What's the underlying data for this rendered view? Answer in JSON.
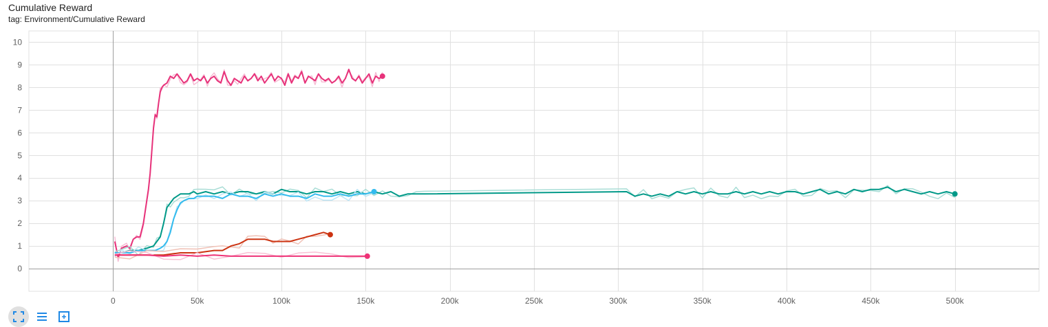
{
  "header": {
    "title": "Cumulative Reward",
    "subtitle": "tag: Environment/Cumulative Reward"
  },
  "toolbar": {
    "icons": [
      "fit-domain-icon",
      "toggle-log-scale-icon",
      "expand-chart-icon"
    ]
  },
  "chart_data": {
    "type": "line",
    "title": "Cumulative Reward",
    "xlabel": "",
    "ylabel": "",
    "xlim": [
      -50000,
      550000
    ],
    "ylim": [
      -1,
      10.5
    ],
    "x_ticks": [
      0,
      50000,
      100000,
      150000,
      200000,
      250000,
      300000,
      350000,
      400000,
      450000,
      500000
    ],
    "x_tick_labels": [
      "0",
      "50k",
      "100k",
      "150k",
      "200k",
      "250k",
      "300k",
      "350k",
      "400k",
      "450k",
      "500k"
    ],
    "y_ticks": [
      0,
      1,
      2,
      3,
      4,
      5,
      6,
      7,
      8,
      9,
      10
    ],
    "y_tick_labels": [
      "0",
      "1",
      "2",
      "3",
      "4",
      "5",
      "6",
      "7",
      "8",
      "9",
      "10"
    ],
    "grid": true,
    "legend": "none",
    "series": [
      {
        "color": "#e7327a",
        "raw_color": "#f6bcd4",
        "x": [
          1000,
          3000,
          5000,
          8000,
          10000,
          12000,
          14000,
          16000,
          18000,
          20000,
          21000,
          22000,
          23000,
          24000,
          25000,
          26000,
          27000,
          28000,
          29000,
          30000,
          32000,
          34000,
          36000,
          38000,
          40000,
          42000,
          44000,
          46000,
          48000,
          50000,
          52000,
          54000,
          56000,
          58000,
          60000,
          62000,
          64000,
          66000,
          68000,
          70000,
          72000,
          74000,
          76000,
          78000,
          80000,
          82000,
          84000,
          86000,
          88000,
          90000,
          92000,
          94000,
          96000,
          98000,
          100000,
          102000,
          104000,
          106000,
          108000,
          110000,
          112000,
          114000,
          116000,
          118000,
          120000,
          122000,
          124000,
          126000,
          128000,
          130000,
          132000,
          134000,
          136000,
          138000,
          140000,
          142000,
          144000,
          146000,
          148000,
          150000,
          152000,
          154000,
          156000,
          158000,
          160000
        ],
        "y": [
          1.2,
          0.5,
          0.9,
          1.0,
          0.9,
          1.3,
          1.4,
          1.4,
          2.0,
          3.0,
          3.5,
          4.2,
          5.2,
          6.2,
          6.8,
          6.7,
          7.3,
          7.8,
          8.0,
          8.1,
          8.2,
          8.5,
          8.4,
          8.6,
          8.4,
          8.2,
          8.3,
          8.6,
          8.3,
          8.4,
          8.3,
          8.5,
          8.2,
          8.4,
          8.5,
          8.3,
          8.2,
          8.7,
          8.3,
          8.1,
          8.4,
          8.3,
          8.2,
          8.5,
          8.3,
          8.4,
          8.6,
          8.3,
          8.5,
          8.2,
          8.4,
          8.6,
          8.3,
          8.5,
          8.4,
          8.1,
          8.6,
          8.2,
          8.5,
          8.4,
          8.7,
          8.2,
          8.5,
          8.4,
          8.3,
          8.6,
          8.4,
          8.3,
          8.4,
          8.2,
          8.3,
          8.5,
          8.2,
          8.4,
          8.8,
          8.4,
          8.3,
          8.5,
          8.2,
          8.4,
          8.6,
          8.2,
          8.5,
          8.4,
          8.5
        ]
      },
      {
        "color": "#009988",
        "raw_color": "#a9ddd6",
        "x": [
          1000,
          5000,
          10000,
          15000,
          20000,
          24000,
          26000,
          28000,
          30000,
          32000,
          34000,
          36000,
          38000,
          40000,
          42000,
          45000,
          48000,
          50000,
          55000,
          60000,
          65000,
          70000,
          75000,
          80000,
          85000,
          90000,
          95000,
          100000,
          105000,
          110000,
          115000,
          120000,
          125000,
          130000,
          135000,
          140000,
          145000,
          150000,
          155000,
          160000,
          165000,
          170000,
          175000,
          180000,
          185000,
          305000,
          310000,
          315000,
          320000,
          325000,
          330000,
          335000,
          340000,
          345000,
          350000,
          355000,
          360000,
          365000,
          370000,
          375000,
          380000,
          385000,
          390000,
          395000,
          400000,
          405000,
          410000,
          415000,
          420000,
          425000,
          430000,
          435000,
          440000,
          445000,
          450000,
          455000,
          460000,
          465000,
          470000,
          475000,
          480000,
          485000,
          490000,
          495000,
          500000
        ],
        "y": [
          0.7,
          0.7,
          0.8,
          0.8,
          0.9,
          1.0,
          1.2,
          1.4,
          2.0,
          2.7,
          2.9,
          3.1,
          3.2,
          3.3,
          3.3,
          3.3,
          3.4,
          3.3,
          3.4,
          3.3,
          3.4,
          3.3,
          3.4,
          3.4,
          3.3,
          3.4,
          3.3,
          3.5,
          3.4,
          3.4,
          3.3,
          3.4,
          3.4,
          3.3,
          3.4,
          3.3,
          3.4,
          3.3,
          3.4,
          3.3,
          3.4,
          3.2,
          3.3,
          3.3,
          3.3,
          3.4,
          3.2,
          3.3,
          3.2,
          3.3,
          3.2,
          3.4,
          3.3,
          3.4,
          3.3,
          3.4,
          3.3,
          3.3,
          3.4,
          3.3,
          3.4,
          3.3,
          3.4,
          3.3,
          3.4,
          3.4,
          3.3,
          3.4,
          3.5,
          3.3,
          3.4,
          3.3,
          3.5,
          3.4,
          3.5,
          3.5,
          3.6,
          3.4,
          3.5,
          3.4,
          3.3,
          3.4,
          3.3,
          3.4,
          3.3
        ]
      },
      {
        "color": "#33bbee",
        "raw_color": "#bde6f6",
        "x": [
          1000,
          5000,
          10000,
          15000,
          20000,
          25000,
          28000,
          30000,
          32000,
          34000,
          36000,
          38000,
          40000,
          42000,
          45000,
          48000,
          50000,
          55000,
          60000,
          65000,
          70000,
          75000,
          80000,
          85000,
          90000,
          95000,
          100000,
          105000,
          110000,
          115000,
          120000,
          125000,
          130000,
          135000,
          140000,
          145000,
          150000,
          155000
        ],
        "y": [
          0.7,
          0.7,
          0.7,
          0.8,
          0.8,
          0.8,
          0.9,
          1.0,
          1.2,
          1.6,
          2.2,
          2.6,
          2.9,
          3.0,
          3.1,
          3.1,
          3.2,
          3.2,
          3.2,
          3.1,
          3.3,
          3.2,
          3.2,
          3.1,
          3.3,
          3.2,
          3.3,
          3.2,
          3.2,
          3.1,
          3.3,
          3.2,
          3.2,
          3.3,
          3.2,
          3.3,
          3.3,
          3.4
        ]
      },
      {
        "color": "#cc3311",
        "raw_color": "#f0c1b6",
        "x": [
          1000,
          10000,
          20000,
          30000,
          40000,
          50000,
          60000,
          65000,
          70000,
          75000,
          80000,
          85000,
          90000,
          95000,
          100000,
          105000,
          110000,
          115000,
          120000,
          125000,
          129000
        ],
        "y": [
          0.6,
          0.6,
          0.6,
          0.6,
          0.7,
          0.7,
          0.8,
          0.8,
          1.0,
          1.1,
          1.3,
          1.3,
          1.3,
          1.2,
          1.2,
          1.2,
          1.3,
          1.4,
          1.5,
          1.6,
          1.5
        ]
      },
      {
        "color": "#ee3377",
        "raw_color": "#f9c1d5",
        "x": [
          1000,
          10000,
          20000,
          30000,
          40000,
          50000,
          60000,
          70000,
          80000,
          90000,
          100000,
          110000,
          120000,
          130000,
          140000,
          151000
        ],
        "y": [
          0.6,
          0.6,
          0.6,
          0.55,
          0.6,
          0.55,
          0.6,
          0.55,
          0.55,
          0.55,
          0.55,
          0.55,
          0.55,
          0.55,
          0.55,
          0.55
        ]
      }
    ]
  }
}
